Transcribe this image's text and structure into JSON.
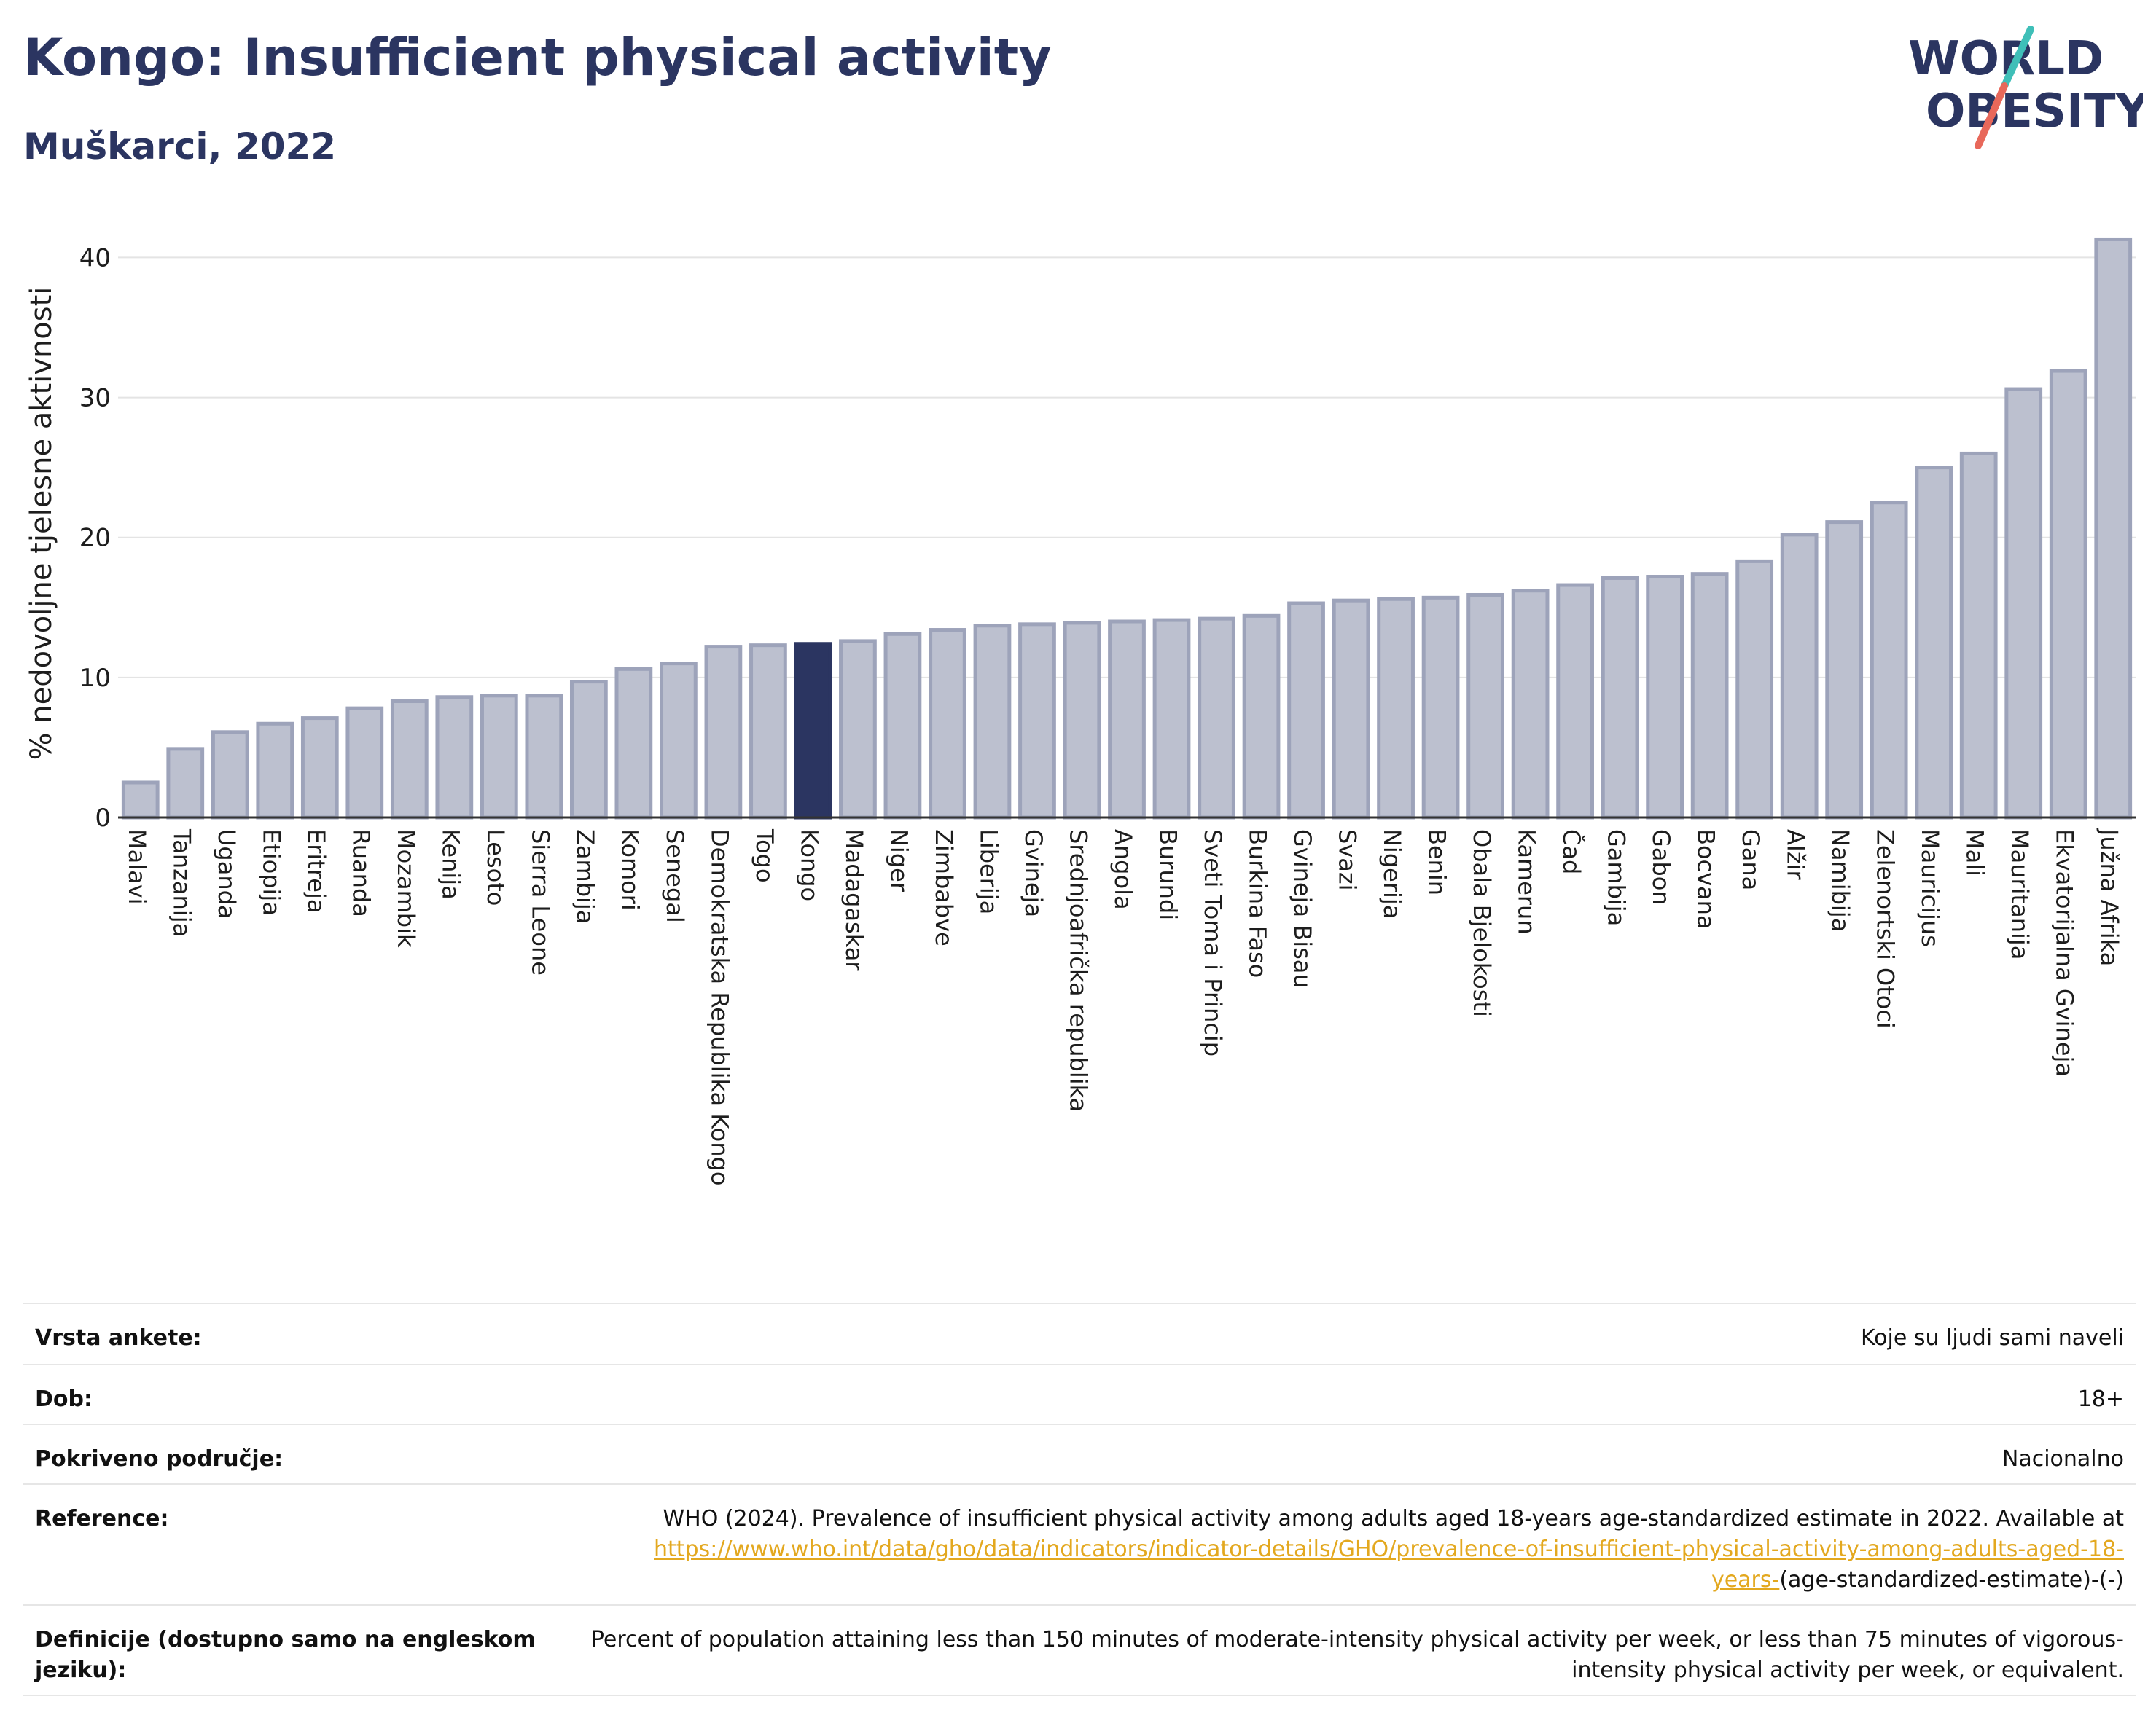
{
  "header": {
    "title": "Kongo: Insufficient physical activity",
    "subtitle": "Muškarci, 2022"
  },
  "logo": {
    "line1": "WORLD",
    "line2": "OBESITY",
    "text_color": "#2b3561",
    "accent_teal": "#3fbfb8",
    "accent_red": "#e8685a"
  },
  "chart_data": {
    "type": "bar",
    "ylabel": "% nedovoljne tjelesne aktivnosti",
    "ylim": [
      0,
      42
    ],
    "yticks": [
      0,
      10,
      20,
      30,
      40
    ],
    "grid": true,
    "highlight": "Kongo",
    "bar_color": "#bcc0cf",
    "bar_edge_color": "#9da3ba",
    "highlight_color": "#2b3561",
    "categories": [
      "Malavi",
      "Tanzanija",
      "Uganda",
      "Etiopija",
      "Eritreja",
      "Ruanda",
      "Mozambik",
      "Kenija",
      "Lesoto",
      "Sierra Leone",
      "Zambija",
      "Komori",
      "Senegal",
      "Demokratska Republika Kongo",
      "Togo",
      "Kongo",
      "Madagaskar",
      "Niger",
      "Zimbabve",
      "Liberija",
      "Gvineja",
      "Srednjoafrička republika",
      "Angola",
      "Burundi",
      "Sveti Toma i Princip",
      "Burkina Faso",
      "Gvineja Bisau",
      "Svazi",
      "Nigerija",
      "Benin",
      "Obala Bjelokosti",
      "Kamerun",
      "Čad",
      "Gambija",
      "Gabon",
      "Bocvana",
      "Gana",
      "Alžir",
      "Namibija",
      "Zelenortski Otoci",
      "Mauricijus",
      "Mali",
      "Mauritanija",
      "Ekvatorijalna Gvineja",
      "Južna Afrika"
    ],
    "values": [
      2.5,
      4.9,
      6.1,
      6.7,
      7.1,
      7.8,
      8.3,
      8.6,
      8.7,
      8.7,
      9.7,
      10.6,
      11.0,
      12.2,
      12.3,
      12.4,
      12.6,
      13.1,
      13.4,
      13.7,
      13.8,
      13.9,
      14.0,
      14.1,
      14.2,
      14.4,
      15.3,
      15.5,
      15.6,
      15.7,
      15.9,
      16.2,
      16.6,
      17.1,
      17.2,
      17.4,
      18.3,
      20.2,
      21.1,
      22.5,
      25.0,
      26.0,
      30.6,
      31.9,
      41.3
    ]
  },
  "meta": {
    "rows": [
      {
        "key": "Vrsta ankete:",
        "value": "Koje su ljudi sami naveli"
      },
      {
        "key": "Dob:",
        "value": "18+"
      },
      {
        "key": "Pokriveno područje:",
        "value": "Nacionalno"
      },
      {
        "key": "Reference:",
        "value": "WHO (2024). Prevalence of insufficient physical activity among adults aged 18-years age-standardized estimate in 2022. Available at",
        "link": "https://www.who.int/data/gho/data/indicators/indicator-details/GHO/prevalence-of-insufficient-physical-activity-among-adults-aged-18-years-",
        "value_after": "(age-standardized-estimate)-(-)"
      },
      {
        "key": "Definicije (dostupno samo na engleskom jeziku):",
        "value": "Percent of population attaining less than 150 minutes of moderate-intensity physical activity per week, or less than 75 minutes of vigorous-intensity physical activity per week, or equivalent."
      }
    ]
  }
}
